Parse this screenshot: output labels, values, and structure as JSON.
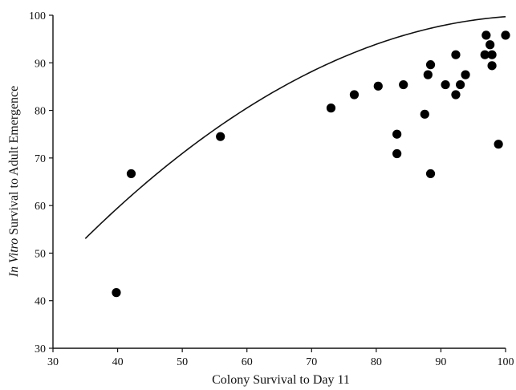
{
  "chart_data": {
    "type": "scatter",
    "title": "",
    "xlabel": "Colony Survival to Day 11",
    "ylabel_italic": "In Vitro",
    "ylabel_rest": " Survival to Adult Emergence",
    "xlim": [
      30,
      100
    ],
    "ylim": [
      30,
      100
    ],
    "xticks": [
      30,
      40,
      50,
      60,
      70,
      80,
      90,
      100
    ],
    "yticks": [
      30,
      40,
      50,
      60,
      70,
      80,
      90,
      100
    ],
    "grid": false,
    "points": [
      {
        "x": 39.8,
        "y": 41.7
      },
      {
        "x": 42.1,
        "y": 66.7
      },
      {
        "x": 55.9,
        "y": 74.5
      },
      {
        "x": 73.0,
        "y": 80.5
      },
      {
        "x": 76.6,
        "y": 83.3
      },
      {
        "x": 80.3,
        "y": 85.1
      },
      {
        "x": 84.2,
        "y": 85.4
      },
      {
        "x": 83.2,
        "y": 75.0
      },
      {
        "x": 83.2,
        "y": 70.9
      },
      {
        "x": 87.5,
        "y": 79.2
      },
      {
        "x": 88.0,
        "y": 87.5
      },
      {
        "x": 88.4,
        "y": 89.6
      },
      {
        "x": 88.4,
        "y": 66.7
      },
      {
        "x": 90.7,
        "y": 85.4
      },
      {
        "x": 92.3,
        "y": 91.7
      },
      {
        "x": 92.3,
        "y": 83.3
      },
      {
        "x": 93.0,
        "y": 85.4
      },
      {
        "x": 93.8,
        "y": 87.5
      },
      {
        "x": 96.8,
        "y": 91.7
      },
      {
        "x": 97.0,
        "y": 95.8
      },
      {
        "x": 97.6,
        "y": 93.8
      },
      {
        "x": 97.9,
        "y": 91.7
      },
      {
        "x": 97.9,
        "y": 89.4
      },
      {
        "x": 98.9,
        "y": 72.9
      },
      {
        "x": 100.0,
        "y": 95.8
      }
    ],
    "fit_line": {
      "type": "quadratic",
      "x_range": [
        35,
        100
      ],
      "coefficients": [
        -5.3,
        2.0,
        -0.0095
      ]
    }
  }
}
